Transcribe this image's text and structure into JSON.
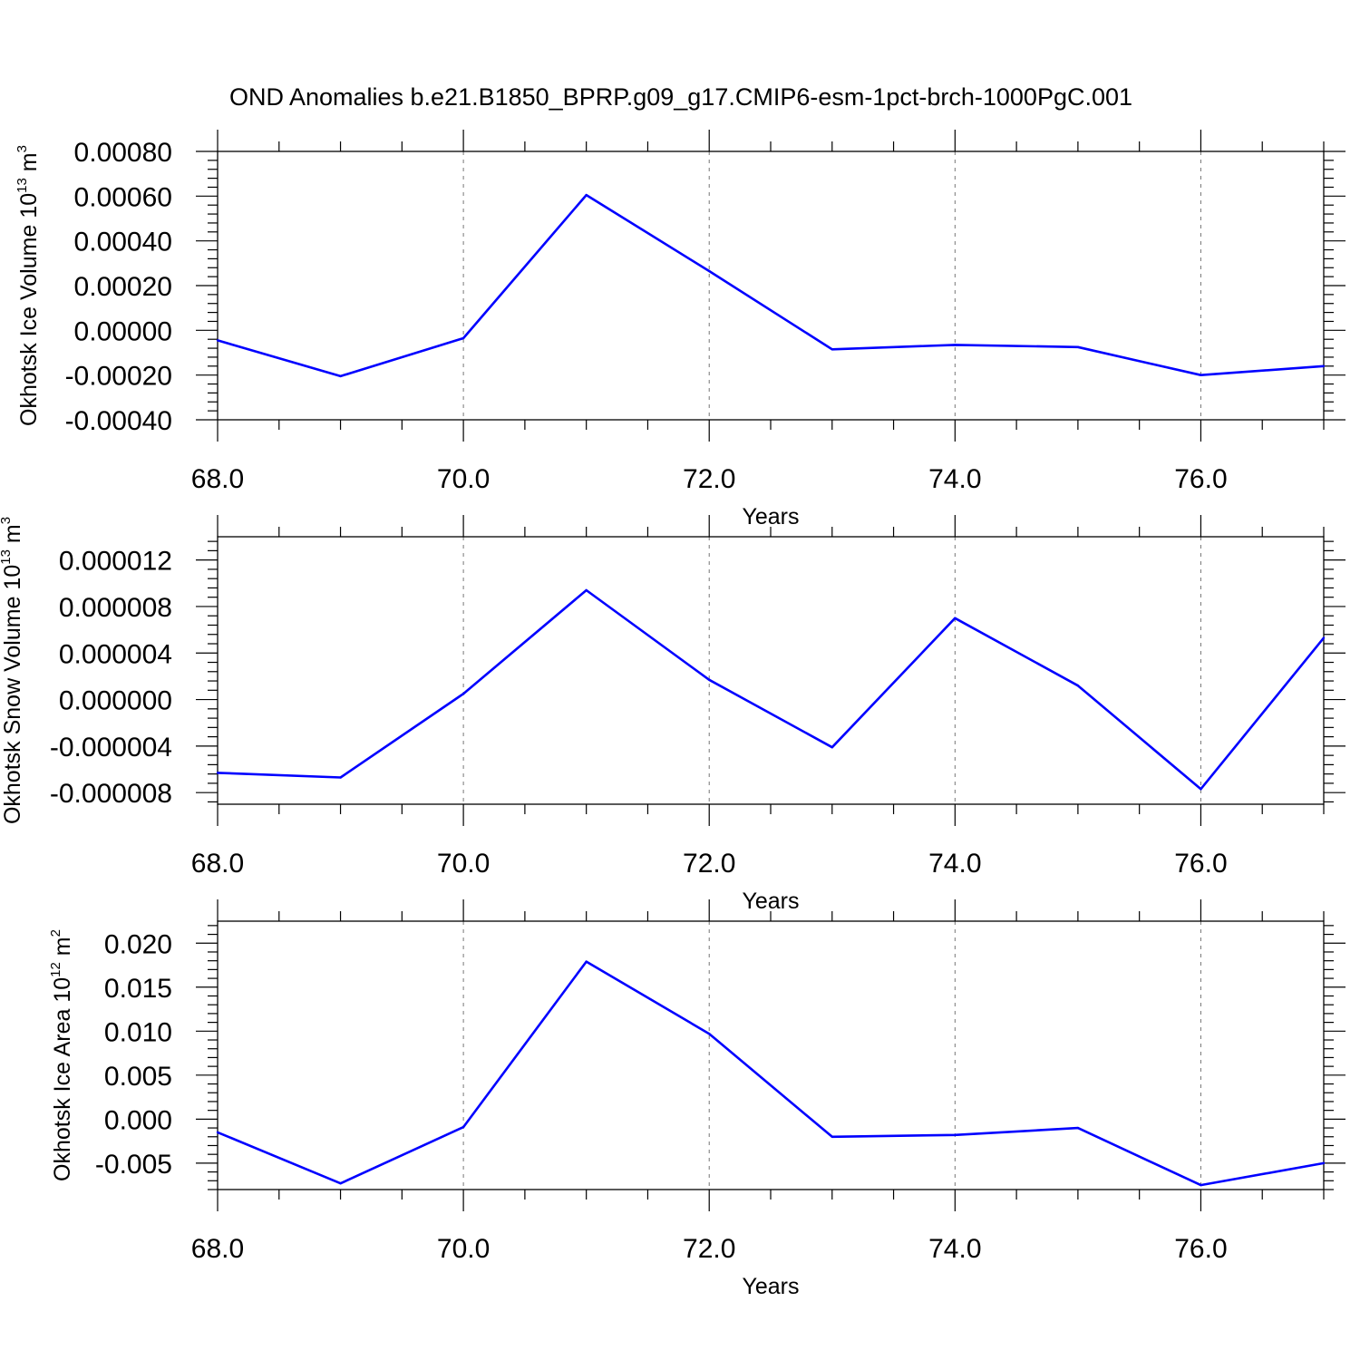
{
  "figure": {
    "title": "OND Anomalies b.e21.B1850_BPRP.g09_g17.CMIP6-esm-1pct-brch-1000PgC.001"
  },
  "colors": {
    "series": "#0000ff",
    "grid": "#777777",
    "frame": "#000000"
  },
  "chart_data": [
    {
      "type": "line",
      "ylabel": {
        "text": "Okhotsk Ice Volume 10",
        "exp": "13",
        "unit": " m",
        "unit_exp": "3"
      },
      "xlabel": "Years",
      "xlim": [
        68,
        77
      ],
      "ylim": [
        -0.0004,
        0.0008
      ],
      "grid": "vertical dashed at major x ticks",
      "x_ticks": [
        68,
        70,
        72,
        74,
        76
      ],
      "x_tick_labels": [
        "68.0",
        "70.0",
        "72.0",
        "74.0",
        "76.0"
      ],
      "y_ticks": [
        -0.0004,
        -0.0002,
        0,
        0.0002,
        0.0004,
        0.0006,
        0.0008
      ],
      "y_tick_labels": [
        "-0.00040",
        "-0.00020",
        "0.00000",
        "0.00020",
        "0.00040",
        "0.00060",
        "0.00080"
      ],
      "x": [
        68,
        69,
        70,
        71,
        72,
        73,
        74,
        75,
        76,
        77
      ],
      "values": [
        -4.5e-05,
        -0.000205,
        -3.5e-05,
        0.000605,
        0.000265,
        -8.5e-05,
        -6.5e-05,
        -7.5e-05,
        -0.0002,
        -0.00016
      ]
    },
    {
      "type": "line",
      "ylabel": {
        "text": "Okhotsk Snow Volume 10",
        "exp": "13",
        "unit": " m",
        "unit_exp": "3"
      },
      "xlabel": "Years",
      "xlim": [
        68,
        77
      ],
      "ylim": [
        -9e-06,
        1.4e-05
      ],
      "grid": "vertical dashed at major x ticks",
      "x_ticks": [
        68,
        70,
        72,
        74,
        76
      ],
      "x_tick_labels": [
        "68.0",
        "70.0",
        "72.0",
        "74.0",
        "76.0"
      ],
      "y_ticks": [
        -8e-06,
        -4e-06,
        0,
        4e-06,
        8e-06,
        1.2e-05
      ],
      "y_tick_labels": [
        "-0.000008",
        "-0.000004",
        "0.000000",
        "0.000004",
        "0.000008",
        "0.000012"
      ],
      "x": [
        68,
        69,
        70,
        71,
        72,
        73,
        74,
        75,
        76,
        77
      ],
      "values": [
        -6.3e-06,
        -6.7e-06,
        5e-07,
        9.4e-06,
        1.7e-06,
        -4.1e-06,
        7e-06,
        1.2e-06,
        -7.7e-06,
        5.3e-06
      ]
    },
    {
      "type": "line",
      "ylabel": {
        "text": "Okhotsk Ice Area 10",
        "exp": "12",
        "unit": " m",
        "unit_exp": "2"
      },
      "xlabel": "Years",
      "xlim": [
        68,
        77
      ],
      "ylim": [
        -0.008,
        0.0225
      ],
      "grid": "vertical dashed at major x ticks",
      "x_ticks": [
        68,
        70,
        72,
        74,
        76
      ],
      "x_tick_labels": [
        "68.0",
        "70.0",
        "72.0",
        "74.0",
        "76.0"
      ],
      "y_ticks": [
        -0.005,
        0,
        0.005,
        0.01,
        0.015,
        0.02
      ],
      "y_tick_labels": [
        "-0.005",
        "0.000",
        "0.005",
        "0.010",
        "0.015",
        "0.020"
      ],
      "x": [
        68,
        69,
        70,
        71,
        72,
        73,
        74,
        75,
        76,
        77
      ],
      "values": [
        -0.0015,
        -0.0073,
        -0.0009,
        0.0179,
        0.0097,
        -0.002,
        -0.0018,
        -0.001,
        -0.0075,
        -0.005
      ]
    }
  ]
}
